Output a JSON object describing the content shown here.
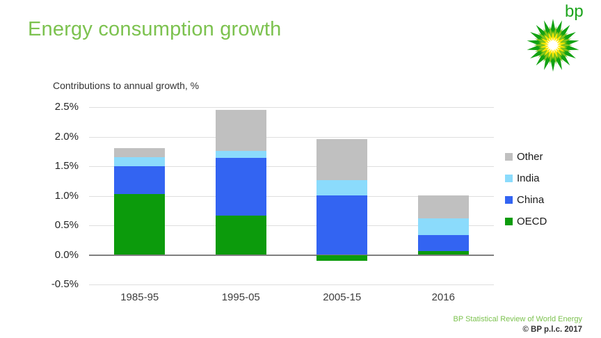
{
  "slide": {
    "title": "Energy consumption growth",
    "logo_text": "bp",
    "footer": {
      "line1": "BP Statistical Review of World Energy",
      "line2": "© BP p.l.c. 2017"
    }
  },
  "colors": {
    "title_green": "#7CC24F",
    "gridline": "#DEDEDE",
    "zero_line": "#7F7F7F",
    "bp_logo_green": "#12A212",
    "bp_logo_yellow_green": "#7FC31C",
    "bp_logo_yellow": "#FFE800",
    "bp_logo_white": "#FFFFFF"
  },
  "chart_data": {
    "type": "bar",
    "stacked": true,
    "title": "Contributions to annual growth, %",
    "categories": [
      "1985-95",
      "1995-05",
      "2005-15",
      "2016"
    ],
    "series": [
      {
        "name": "OECD",
        "color": "#0C9B0C",
        "values": [
          1.03,
          0.67,
          -0.1,
          0.06
        ]
      },
      {
        "name": "China",
        "color": "#3364F2",
        "values": [
          0.47,
          0.97,
          1.01,
          0.28
        ]
      },
      {
        "name": "India",
        "color": "#8BDBFC",
        "values": [
          0.15,
          0.12,
          0.26,
          0.28
        ]
      },
      {
        "name": "Other",
        "color": "#C0C0C0",
        "values": [
          0.16,
          0.69,
          0.69,
          0.39
        ]
      }
    ],
    "stack_totals": [
      1.81,
      2.45,
      1.96,
      1.01
    ],
    "ylim": [
      -0.5,
      2.5
    ],
    "yticks": [
      {
        "label": "2.5%",
        "value": 2.5
      },
      {
        "label": "2.0%",
        "value": 2.0
      },
      {
        "label": "1.5%",
        "value": 1.5
      },
      {
        "label": "1.0%",
        "value": 1.0
      },
      {
        "label": "0.5%",
        "value": 0.5
      },
      {
        "label": "0.0%",
        "value": 0.0
      },
      {
        "label": "-0.5%",
        "value": -0.5
      }
    ],
    "legend": [
      "Other",
      "India",
      "China",
      "OECD"
    ],
    "legend_position": "right",
    "grid": true
  }
}
